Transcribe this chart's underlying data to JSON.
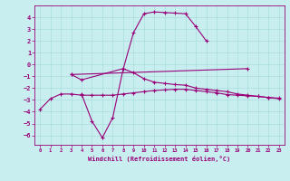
{
  "xlabel": "Windchill (Refroidissement éolien,°C)",
  "background_color": "#c8eef0",
  "grid_color": "#aadddd",
  "line_color": "#990077",
  "x_ticks": [
    0,
    1,
    2,
    3,
    4,
    5,
    6,
    7,
    8,
    9,
    10,
    11,
    12,
    13,
    14,
    15,
    16,
    17,
    18,
    19,
    20,
    21,
    22,
    23
  ],
  "y_ticks": [
    -6,
    -5,
    -4,
    -3,
    -2,
    -1,
    0,
    1,
    2,
    3,
    4
  ],
  "xlim": [
    -0.5,
    23.5
  ],
  "ylim": [
    -6.8,
    5.0
  ],
  "series": [
    [
      null,
      null,
      null,
      null,
      -2.5,
      -4.8,
      -6.2,
      -4.5,
      -0.4,
      2.7,
      4.3,
      4.45,
      4.4,
      4.35,
      4.3,
      3.2,
      2.0,
      null,
      null,
      null,
      null,
      null,
      null,
      null
    ],
    [
      -3.8,
      -2.9,
      -2.5,
      -2.5,
      -2.6,
      -2.6,
      -2.6,
      -2.6,
      -2.5,
      -2.4,
      -2.3,
      -2.2,
      -2.15,
      -2.1,
      -2.1,
      -2.2,
      -2.3,
      -2.4,
      -2.55,
      -2.6,
      -2.65,
      -2.7,
      -2.8,
      -2.85
    ],
    [
      null,
      null,
      null,
      -0.85,
      -1.3,
      null,
      null,
      null,
      -0.35,
      -0.7,
      -1.2,
      -1.5,
      -1.6,
      -1.7,
      -1.75,
      -2.0,
      -2.1,
      -2.2,
      -2.3,
      -2.5,
      -2.6,
      -2.7,
      -2.8,
      -2.9
    ],
    [
      null,
      null,
      null,
      -0.85,
      null,
      null,
      null,
      null,
      null,
      null,
      null,
      null,
      null,
      null,
      null,
      null,
      null,
      null,
      null,
      null,
      -0.35,
      null,
      null,
      null
    ]
  ]
}
